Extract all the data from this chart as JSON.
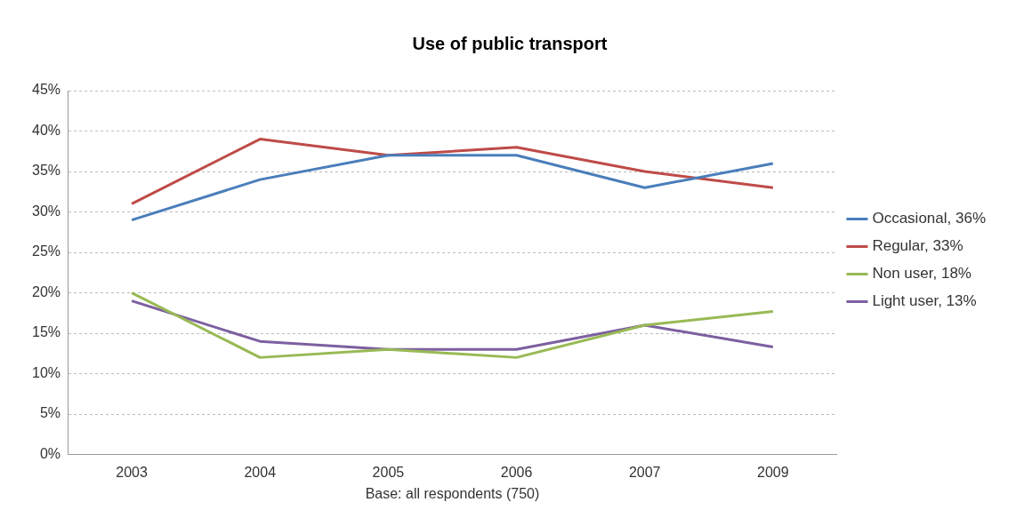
{
  "chart_data": {
    "type": "line",
    "title": "Use of public transport",
    "xlabel": "Base: all respondents (750)",
    "categories": [
      "2003",
      "2004",
      "2005",
      "2006",
      "2007",
      "2009"
    ],
    "series": [
      {
        "name": "Occasional, 36%",
        "color": "#4a7ebb",
        "values": [
          29,
          34,
          37,
          37,
          33,
          36
        ]
      },
      {
        "name": "Regular, 33%",
        "color": "#be4b48",
        "values": [
          31,
          39,
          37,
          38,
          35,
          33
        ]
      },
      {
        "name": "Non user, 18%",
        "color": "#98b954",
        "values": [
          20,
          12,
          13,
          12,
          16,
          17.7
        ]
      },
      {
        "name": "Light user, 13%",
        "color": "#7d5fa0",
        "values": [
          19,
          14,
          13,
          13,
          16,
          13.3
        ]
      }
    ],
    "ylim": [
      0,
      45
    ],
    "yticks": [
      {
        "value": 0,
        "label": "0%"
      },
      {
        "value": 5,
        "label": "5%"
      },
      {
        "value": 10,
        "label": "10%"
      },
      {
        "value": 15,
        "label": "15%"
      },
      {
        "value": 20,
        "label": "20%"
      },
      {
        "value": 25,
        "label": "25%"
      },
      {
        "value": 30,
        "label": "30%"
      },
      {
        "value": 35,
        "label": "35%"
      },
      {
        "value": 40,
        "label": "40%"
      },
      {
        "value": 45,
        "label": "45%"
      }
    ],
    "grid": "y",
    "legend": "right",
    "marker": "none",
    "line_style": "solid"
  }
}
